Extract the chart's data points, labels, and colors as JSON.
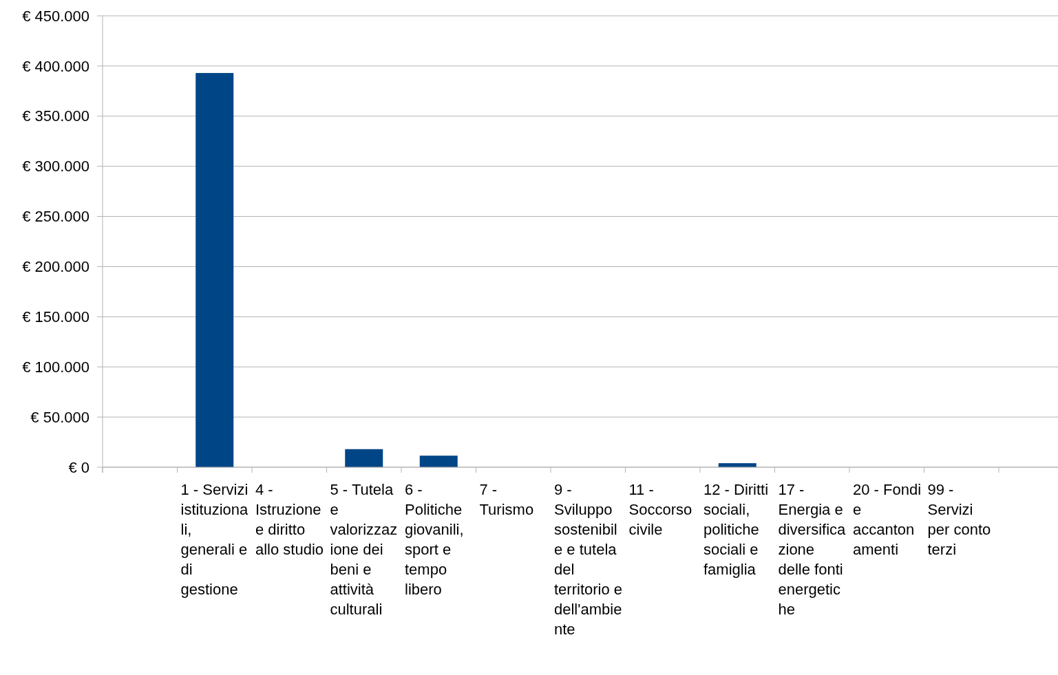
{
  "chart_data": {
    "type": "bar",
    "categories": [
      null,
      "1 - Servizi istituzionali, generali e di gestione",
      "4 - Istruzione e diritto allo studio",
      "5 - Tutela e valorizzazione dei beni e attività culturali",
      "6 - Politiche giovanili, sport e tempo libero",
      "7 - Turismo",
      "9 - Sviluppo sostenibile e tutela del territorio e dell'ambiente",
      "11 - Soccorso civile",
      "12 - Diritti sociali, politiche sociali e famiglia",
      "17 - Energia e diversificazione delle fonti energetiche",
      "20 - Fondi e accantonamenti",
      "99 - Servizi per conto terzi"
    ],
    "values": [
      null,
      393000,
      0,
      18000,
      11500,
      0,
      0,
      0,
      4000,
      0,
      0,
      0
    ],
    "color": "#004586",
    "ylim": [
      0,
      450000
    ],
    "yticks": [
      {
        "value": 0,
        "label": "€ 0"
      },
      {
        "value": 50000,
        "label": "€ 50.000"
      },
      {
        "value": 100000,
        "label": "€ 100.000"
      },
      {
        "value": 150000,
        "label": "€ 150.000"
      },
      {
        "value": 200000,
        "label": "€ 200.000"
      },
      {
        "value": 250000,
        "label": "€ 250.000"
      },
      {
        "value": 300000,
        "label": "€ 300.000"
      },
      {
        "value": 350000,
        "label": "€ 350.000"
      },
      {
        "value": 400000,
        "label": "€ 400.000"
      },
      {
        "value": 450000,
        "label": "€ 450.000"
      }
    ],
    "grid": "y"
  }
}
